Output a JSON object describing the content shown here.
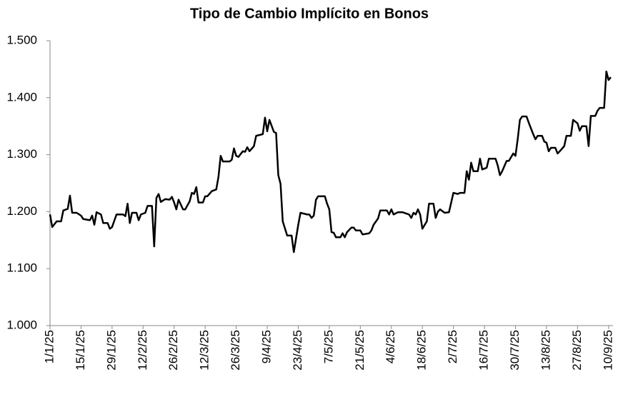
{
  "chart_data": {
    "type": "line",
    "title": "Tipo de Cambio Implícito en Bonos",
    "x": [
      "1/1/25",
      "2/1/25",
      "4/1/25",
      "6/1/25",
      "7/1/25",
      "9/1/25",
      "10/1/25",
      "11/1/25",
      "13/1/25",
      "15/1/25",
      "16/1/25",
      "19/1/25",
      "20/1/25",
      "21/1/25",
      "22/1/25",
      "24/1/25",
      "25/1/25",
      "27/1/25",
      "28/1/25",
      "29/1/25",
      "31/1/25",
      "3/2/25",
      "4/2/25",
      "5/2/25",
      "6/2/25",
      "7/2/25",
      "9/2/25",
      "10/2/25",
      "11/2/25",
      "13/2/25",
      "14/2/25",
      "16/2/25",
      "17/2/25",
      "18/2/25",
      "19/2/25",
      "20/2/25",
      "22/2/25",
      "24/2/25",
      "25/2/25",
      "26/2/25",
      "27/2/25",
      "28/2/25",
      "2/3/25",
      "3/3/25",
      "5/3/25",
      "6/3/25",
      "7/3/25",
      "8/3/25",
      "9/3/25",
      "11/3/25",
      "12/3/25",
      "13/3/25",
      "15/3/25",
      "17/3/25",
      "18/3/25",
      "19/3/25",
      "20/3/25",
      "23/3/25",
      "24/3/25",
      "25/3/25",
      "26/3/25",
      "27/3/25",
      "29/3/25",
      "30/3/25",
      "31/3/25",
      "1/4/25",
      "3/4/25",
      "4/4/25",
      "7/4/25",
      "8/4/25",
      "9/4/25",
      "10/4/25",
      "12/4/25",
      "13/4/25",
      "14/4/25",
      "15/4/25",
      "16/4/25",
      "18/4/25",
      "20/4/25",
      "21/4/25",
      "23/4/25",
      "24/4/25",
      "27/4/25",
      "28/4/25",
      "29/4/25",
      "30/4/25",
      "1/5/25",
      "2/5/25",
      "5/5/25",
      "6/5/25",
      "7/5/25",
      "8/5/25",
      "9/5/25",
      "10/5/25",
      "12/5/25",
      "13/5/25",
      "14/5/25",
      "15/5/25",
      "17/5/25",
      "18/5/25",
      "19/5/25",
      "21/5/25",
      "22/5/25",
      "25/5/25",
      "26/5/25",
      "27/5/25",
      "29/5/25",
      "30/5/25",
      "2/6/25",
      "3/6/25",
      "4/6/25",
      "5/6/25",
      "7/6/25",
      "9/6/25",
      "12/6/25",
      "13/6/25",
      "14/6/25",
      "15/6/25",
      "16/6/25",
      "17/6/25",
      "18/6/25",
      "20/6/25",
      "21/6/25",
      "23/6/25",
      "24/6/25",
      "25/6/25",
      "26/6/25",
      "28/6/25",
      "30/6/25",
      "2/7/25",
      "4/7/25",
      "5/7/25",
      "7/7/25",
      "8/7/25",
      "9/7/25",
      "10/7/25",
      "11/7/25",
      "13/7/25",
      "14/7/25",
      "15/7/25",
      "17/7/25",
      "18/7/25",
      "21/7/25",
      "22/7/25",
      "23/7/25",
      "24/7/25",
      "26/7/25",
      "27/7/25",
      "29/7/25",
      "30/7/25",
      "31/7/25",
      "1/8/25",
      "2/8/25",
      "4/8/25",
      "5/8/25",
      "7/8/25",
      "8/8/25",
      "9/8/25",
      "11/8/25",
      "12/8/25",
      "13/8/25",
      "14/8/25",
      "15/8/25",
      "17/8/25",
      "18/8/25",
      "19/8/25",
      "21/8/25",
      "22/8/25",
      "24/8/25",
      "25/8/25",
      "27/8/25",
      "28/8/25",
      "29/8/25",
      "31/8/25",
      "1/9/25",
      "2/9/25",
      "4/9/25",
      "5/9/25",
      "6/9/25",
      "8/9/25",
      "9/9/25",
      "10/9/25",
      "11/9/25"
    ],
    "values": [
      1195,
      1173,
      1183,
      1183,
      1202,
      1205,
      1228,
      1198,
      1198,
      1193,
      1187,
      1185,
      1193,
      1177,
      1199,
      1195,
      1180,
      1180,
      1170,
      1173,
      1195,
      1195,
      1192,
      1214,
      1180,
      1198,
      1198,
      1185,
      1195,
      1198,
      1210,
      1210,
      1139,
      1224,
      1231,
      1217,
      1222,
      1221,
      1226,
      1216,
      1204,
      1221,
      1204,
      1204,
      1218,
      1233,
      1231,
      1243,
      1216,
      1216,
      1227,
      1227,
      1236,
      1239,
      1261,
      1298,
      1288,
      1288,
      1291,
      1311,
      1298,
      1296,
      1306,
      1305,
      1313,
      1306,
      1315,
      1333,
      1336,
      1365,
      1341,
      1361,
      1340,
      1338,
      1264,
      1249,
      1183,
      1158,
      1158,
      1129,
      1177,
      1198,
      1195,
      1195,
      1189,
      1193,
      1221,
      1227,
      1227,
      1214,
      1204,
      1164,
      1163,
      1155,
      1155,
      1162,
      1155,
      1164,
      1172,
      1172,
      1167,
      1167,
      1160,
      1162,
      1167,
      1177,
      1188,
      1202,
      1202,
      1195,
      1204,
      1195,
      1199,
      1199,
      1195,
      1189,
      1198,
      1195,
      1204,
      1195,
      1170,
      1183,
      1214,
      1214,
      1189,
      1200,
      1204,
      1198,
      1199,
      1233,
      1231,
      1233,
      1233,
      1271,
      1256,
      1286,
      1271,
      1271,
      1293,
      1274,
      1277,
      1293,
      1293,
      1281,
      1264,
      1271,
      1289,
      1289,
      1302,
      1298,
      1327,
      1361,
      1367,
      1367,
      1356,
      1336,
      1327,
      1333,
      1333,
      1323,
      1321,
      1306,
      1312,
      1312,
      1302,
      1306,
      1315,
      1333,
      1333,
      1361,
      1355,
      1342,
      1350,
      1350,
      1315,
      1368,
      1368,
      1377,
      1382,
      1382,
      1446,
      1431,
      1436
    ],
    "color": "#000000",
    "xlim": [
      "1/1/25",
      "12/9/25"
    ],
    "xticks": [
      "1/1/25",
      "15/1/25",
      "29/1/25",
      "12/2/25",
      "26/2/25",
      "12/3/25",
      "26/3/25",
      "9/4/25",
      "23/4/25",
      "7/5/25",
      "21/5/25",
      "4/6/25",
      "18/6/25",
      "2/7/25",
      "16/7/25",
      "30/7/25",
      "13/8/25",
      "27/8/25",
      "10/9/25"
    ],
    "ylim": [
      1000,
      1500
    ],
    "yticks": [
      {
        "value": 1000,
        "label": "1.000"
      },
      {
        "value": 1100,
        "label": "1.100"
      },
      {
        "value": 1200,
        "label": "1.200"
      },
      {
        "value": 1300,
        "label": "1.300"
      },
      {
        "value": 1400,
        "label": "1.400"
      },
      {
        "value": 1500,
        "label": "1.500"
      }
    ],
    "grid": false
  }
}
